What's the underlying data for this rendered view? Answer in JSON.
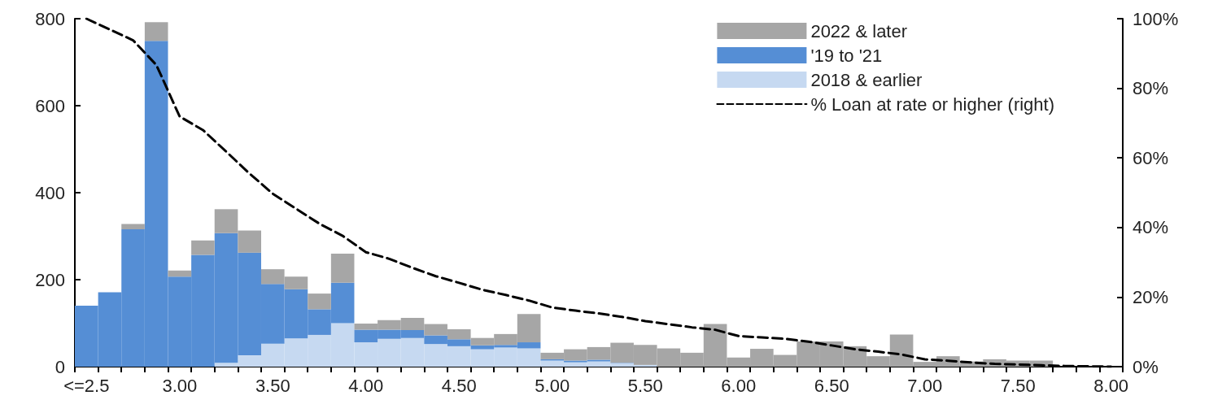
{
  "chart_data": {
    "type": "bar",
    "stacked": true,
    "categories": [
      "<=2.5",
      null,
      null,
      null,
      "3.00",
      null,
      null,
      null,
      "3.50",
      null,
      null,
      null,
      "4.00",
      null,
      null,
      null,
      "4.50",
      null,
      null,
      null,
      "5.00",
      null,
      null,
      null,
      "5.50",
      null,
      null,
      null,
      "6.00",
      null,
      null,
      null,
      "6.50",
      null,
      null,
      null,
      "7.00",
      null,
      null,
      null,
      "7.50",
      null,
      null,
      null,
      "8.00"
    ],
    "series": [
      {
        "name": "2018 & earlier",
        "color": "#c6d9f1",
        "values": [
          0,
          0,
          0,
          0,
          0,
          0,
          9,
          26,
          53,
          65,
          73,
          100,
          56,
          64,
          66,
          52,
          47,
          40,
          44,
          42,
          14,
          10,
          12,
          8,
          4,
          0,
          0,
          0,
          0,
          0,
          0,
          0,
          0,
          0,
          0,
          0,
          0,
          0,
          0,
          0,
          0,
          0,
          0,
          0,
          0
        ]
      },
      {
        "name": "'19 to '21",
        "color": "#558ed5",
        "values": [
          140,
          171,
          316,
          749,
          207,
          257,
          298,
          236,
          137,
          113,
          59,
          93,
          29,
          21,
          18,
          20,
          16,
          9,
          6,
          14,
          3,
          4,
          4,
          1,
          0,
          0,
          0,
          0,
          0,
          0,
          0,
          0,
          0,
          0,
          0,
          0,
          0,
          0,
          0,
          0,
          0,
          0,
          0,
          0,
          0
        ]
      },
      {
        "name": "2022 & later",
        "color": "#a6a6a6",
        "values": [
          0,
          0,
          12,
          43,
          14,
          33,
          55,
          51,
          34,
          29,
          36,
          67,
          14,
          22,
          28,
          26,
          23,
          17,
          25,
          65,
          15,
          26,
          29,
          46,
          46,
          42,
          32,
          98,
          21,
          41,
          27,
          58,
          58,
          47,
          24,
          74,
          11,
          24,
          12,
          17,
          14,
          14,
          null,
          null,
          null
        ]
      },
      {
        "name": "% Loan at rate or higher (right)",
        "type": "line",
        "axis": "y2",
        "color": "#000000",
        "line_style": "dashed",
        "values": [
          100,
          96.9,
          93.8,
          86.7,
          71.9,
          68,
          61.8,
          55.5,
          49.7,
          45.4,
          41.1,
          37.6,
          32.9,
          31,
          28.4,
          26,
          24.1,
          22.1,
          20.6,
          19,
          17,
          16.1,
          15.3,
          14.3,
          13.1,
          12.2,
          11.3,
          10.6,
          8.8,
          8.4,
          8,
          7.2,
          6.1,
          5,
          4.3,
          3.5,
          2.1,
          1.7,
          1.2,
          0.8,
          0.6,
          0.4,
          0.2,
          0.1,
          0
        ]
      }
    ],
    "ylim": [
      0,
      800
    ],
    "yticks": [
      0,
      200,
      400,
      600,
      800
    ],
    "y2lim": [
      0,
      100
    ],
    "y2ticks": [
      {
        "value": 0,
        "label": "0%"
      },
      {
        "value": 20,
        "label": "20%"
      },
      {
        "value": 40,
        "label": "40%"
      },
      {
        "value": 60,
        "label": "60%"
      },
      {
        "value": 80,
        "label": "80%"
      },
      {
        "value": 100,
        "label": "100%"
      }
    ],
    "marker": "none",
    "grid": false,
    "legend": "top right"
  }
}
